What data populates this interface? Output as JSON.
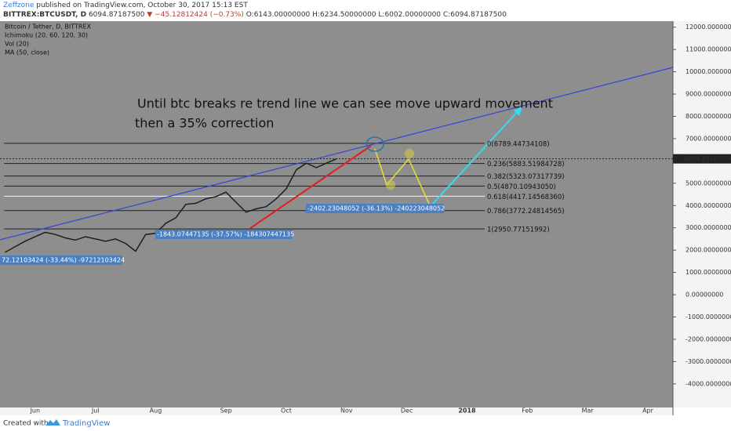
{
  "header": {
    "author": "Zeffzone",
    "published": "published on TradingView.com, October 30, 2017 15:13 EST",
    "symbol": "BITTREX:BTCUSDT, D",
    "last": "6094.87187500",
    "change": "▼ −45.12812424 (−0.73%)",
    "ohlc": [
      "O:6143.00000000",
      "H:6234.50000000",
      "L:6002.00000000",
      "C:6094.87187500"
    ]
  },
  "legend": [
    "Bitcoin / Tether, D, BITTREX",
    "Ichimoku (20, 60, 120, 30)",
    "Vol (20)",
    "MA (50, close)"
  ],
  "chart_data": {
    "type": "line",
    "categories": [
      null,
      null,
      null,
      "Jun",
      null,
      null,
      null,
      null,
      null,
      "Jul",
      null,
      null,
      null,
      null,
      null,
      "Aug",
      null,
      null,
      null,
      null,
      null,
      null,
      "Sep",
      null,
      null,
      null,
      null,
      null,
      "Oct",
      null,
      null,
      null,
      null,
      null,
      "Nov",
      null,
      null,
      null,
      null,
      null,
      "Dec",
      null,
      null,
      null,
      null,
      null,
      "2018",
      null,
      null,
      null,
      null,
      null,
      "Feb",
      null,
      null,
      null,
      null,
      null,
      "Mar",
      null,
      null,
      null,
      null,
      null,
      "Apr",
      null,
      null
    ],
    "series": [
      {
        "color": "#1e1e1e",
        "values": [
          1900,
          2150,
          2400,
          2600,
          2800,
          2700,
          2550,
          2450,
          2600,
          2500,
          2400,
          2500,
          2300,
          1950,
          2700,
          2750,
          3200,
          3450,
          4050,
          4100,
          4300,
          4400,
          4600,
          4150,
          3700,
          3850,
          3950,
          4300,
          4750,
          5600,
          5900,
          5700,
          5900,
          6095,
          null,
          null,
          null,
          null,
          null,
          null,
          null,
          null,
          null,
          null,
          null,
          null,
          null,
          null,
          null,
          null,
          null,
          null,
          null,
          null,
          null,
          null,
          null,
          null,
          null,
          null,
          null,
          null,
          null,
          null,
          null,
          null,
          null
        ]
      }
    ],
    "ylim": [
      -5060,
      12270
    ],
    "yticks": [
      {
        "value": 12000,
        "label": "12000.00000000"
      },
      {
        "value": 11000,
        "label": "11000.00000000"
      },
      {
        "value": 10000,
        "label": "10000.00000000"
      },
      {
        "value": 9000,
        "label": "9000.00000000"
      },
      {
        "value": 8000,
        "label": "8000.00000000"
      },
      {
        "value": 7000,
        "label": "7000.00000000"
      },
      {
        "value": 5000,
        "label": "5000.00000000"
      },
      {
        "value": 4000,
        "label": "4000.00000000"
      },
      {
        "value": 3000,
        "label": "3000.00000000"
      },
      {
        "value": 2000,
        "label": "2000.00000000"
      },
      {
        "value": 1000,
        "label": "1000.00000000"
      },
      {
        "value": 0,
        "label": "0.00000000"
      },
      {
        "value": -1000,
        "label": "-1000.00000000"
      },
      {
        "value": -2000,
        "label": "-2000.00000000"
      },
      {
        "value": -3000,
        "label": "-3000.00000000"
      },
      {
        "value": -4000,
        "label": "-4000.00000000"
      }
    ],
    "price_label": {
      "value": 6094.871875,
      "label": "6094.87187500"
    },
    "fib_levels": [
      {
        "value": 6789.44734108,
        "label": "0(6789.44734108)"
      },
      {
        "value": 5883.51984728,
        "label": "0.236(5883.51984728)"
      },
      {
        "value": 5323.07317739,
        "label": "0.382(5323.07317739)"
      },
      {
        "value": 4870.1094305,
        "label": "0.5(4870.10943050)"
      },
      {
        "value": 4417.1456836,
        "label": "0.618(4417.14568360)"
      },
      {
        "value": 3772.24814565,
        "label": "0.786(3772.24814565)"
      },
      {
        "value": 2950.77151992,
        "label": "1(2950.77151992)"
      }
    ],
    "annotations": [
      "Until btc breaks re trend line we can see move upward movement",
      "then a 35% correction"
    ],
    "measurements": [
      "72.12103424 (-33.44%) -97212103424",
      "-1843.07447135 (-37.57%) -184307447135",
      "-2402.23048052 (-36.13%) -240223048052"
    ]
  },
  "footer": {
    "created": "Created with",
    "brand": "TradingView"
  }
}
